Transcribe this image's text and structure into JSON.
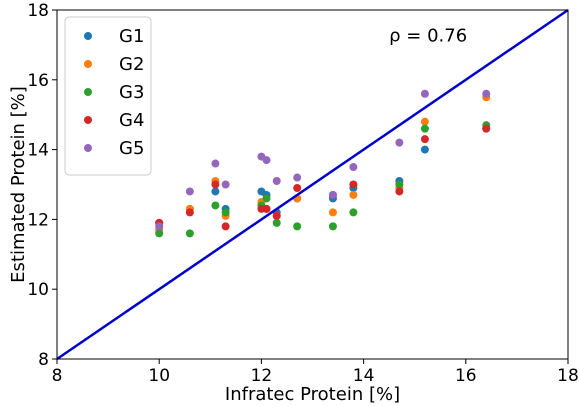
{
  "chart_data": {
    "type": "scatter",
    "xlabel": "Infratec Protein [%]",
    "ylabel": "Estimated Protein [%]",
    "xlim": [
      8,
      18
    ],
    "ylim": [
      8,
      18
    ],
    "xticks": [
      "8",
      "10",
      "12",
      "14",
      "16",
      "18"
    ],
    "yticks": [
      "8",
      "10",
      "12",
      "14",
      "16",
      "18"
    ],
    "grid": false,
    "legend_position": "top-left",
    "annotation": {
      "text": "ρ = 0.76",
      "x": 14.5,
      "y": 17.1
    },
    "identity_line": {
      "from": [
        8,
        8
      ],
      "to": [
        18,
        18
      ],
      "color": "#0000cc"
    },
    "series": [
      {
        "name": "G1",
        "color": "#1f77b4",
        "points": [
          [
            10.0,
            11.9
          ],
          [
            10.6,
            12.3
          ],
          [
            11.1,
            12.8
          ],
          [
            11.3,
            12.3
          ],
          [
            12.0,
            12.8
          ],
          [
            12.1,
            12.7
          ],
          [
            12.3,
            12.2
          ],
          [
            12.7,
            12.6
          ],
          [
            13.4,
            12.6
          ],
          [
            13.8,
            12.9
          ],
          [
            14.7,
            13.1
          ],
          [
            15.2,
            14.0
          ],
          [
            16.4,
            14.6
          ]
        ]
      },
      {
        "name": "G2",
        "color": "#ff7f0e",
        "points": [
          [
            10.0,
            11.7
          ],
          [
            10.6,
            12.3
          ],
          [
            11.1,
            13.1
          ],
          [
            11.3,
            12.1
          ],
          [
            12.0,
            12.5
          ],
          [
            12.1,
            12.3
          ],
          [
            12.3,
            12.1
          ],
          [
            12.7,
            12.6
          ],
          [
            13.4,
            12.2
          ],
          [
            13.8,
            12.7
          ],
          [
            14.7,
            12.9
          ],
          [
            15.2,
            14.8
          ],
          [
            16.4,
            15.5
          ]
        ]
      },
      {
        "name": "G3",
        "color": "#2ca02c",
        "points": [
          [
            10.0,
            11.6
          ],
          [
            10.6,
            11.6
          ],
          [
            11.1,
            12.4
          ],
          [
            11.3,
            12.2
          ],
          [
            12.0,
            12.4
          ],
          [
            12.1,
            12.6
          ],
          [
            12.3,
            11.9
          ],
          [
            12.7,
            11.8
          ],
          [
            13.4,
            11.8
          ],
          [
            13.8,
            12.2
          ],
          [
            14.7,
            13.0
          ],
          [
            15.2,
            14.6
          ],
          [
            16.4,
            14.7
          ]
        ]
      },
      {
        "name": "G4",
        "color": "#d62728",
        "points": [
          [
            10.0,
            11.9
          ],
          [
            10.6,
            12.2
          ],
          [
            11.1,
            13.0
          ],
          [
            11.3,
            11.8
          ],
          [
            12.0,
            12.3
          ],
          [
            12.1,
            12.3
          ],
          [
            12.3,
            12.1
          ],
          [
            12.7,
            12.9
          ],
          [
            13.4,
            12.7
          ],
          [
            13.8,
            13.0
          ],
          [
            14.7,
            12.8
          ],
          [
            15.2,
            14.3
          ],
          [
            16.4,
            14.6
          ]
        ]
      },
      {
        "name": "G5",
        "color": "#9467bd",
        "points": [
          [
            10.0,
            11.8
          ],
          [
            10.6,
            12.8
          ],
          [
            11.1,
            13.6
          ],
          [
            11.3,
            13.0
          ],
          [
            12.0,
            13.8
          ],
          [
            12.1,
            13.7
          ],
          [
            12.3,
            13.1
          ],
          [
            12.7,
            13.2
          ],
          [
            13.4,
            12.7
          ],
          [
            13.8,
            13.5
          ],
          [
            14.7,
            14.2
          ],
          [
            15.2,
            15.6
          ],
          [
            16.4,
            15.6
          ]
        ]
      }
    ]
  }
}
